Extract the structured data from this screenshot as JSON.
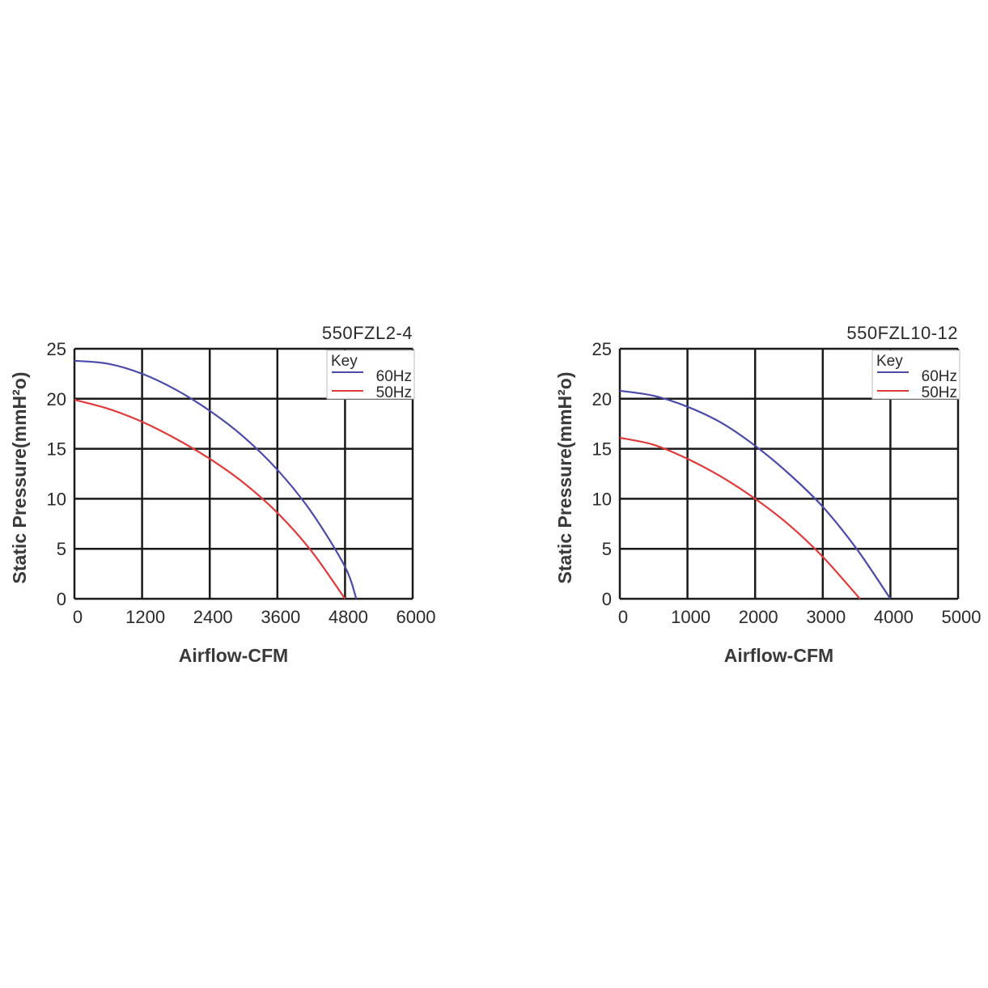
{
  "chart_data": [
    {
      "type": "line",
      "title": "550FZL2-4",
      "xlabel": "Airflow-CFM",
      "ylabel": "Static Pressure(mmH²o)",
      "xlim": [
        0,
        6000
      ],
      "ylim": [
        0,
        25
      ],
      "x_ticks": [
        "0",
        "1200",
        "2400",
        "3600",
        "4800",
        "6000"
      ],
      "y_ticks": [
        "0",
        "5",
        "10",
        "15",
        "20",
        "25"
      ],
      "grid": true,
      "legend": {
        "title": "Key",
        "position": "top-right"
      },
      "series": [
        {
          "name": "60Hz",
          "color": "#4a4aa8",
          "points": [
            [
              0,
              23.8
            ],
            [
              600,
              23.5
            ],
            [
              1200,
              22.5
            ],
            [
              1800,
              20.9
            ],
            [
              2400,
              18.8
            ],
            [
              3000,
              16.2
            ],
            [
              3600,
              12.9
            ],
            [
              4200,
              8.7
            ],
            [
              4800,
              3.2
            ],
            [
              5000,
              0
            ]
          ]
        },
        {
          "name": "50Hz",
          "color": "#e03a3a",
          "points": [
            [
              0,
              19.9
            ],
            [
              600,
              19.0
            ],
            [
              1200,
              17.7
            ],
            [
              1800,
              16.0
            ],
            [
              2400,
              14.0
            ],
            [
              3000,
              11.6
            ],
            [
              3600,
              8.6
            ],
            [
              4200,
              4.8
            ],
            [
              4800,
              0
            ]
          ]
        }
      ]
    },
    {
      "type": "line",
      "title": "550FZL10-12",
      "xlabel": "Airflow-CFM",
      "ylabel": "Static Pressure(mmH²o)",
      "xlim": [
        0,
        5000
      ],
      "ylim": [
        0,
        25
      ],
      "x_ticks": [
        "0",
        "1000",
        "2000",
        "3000",
        "4000",
        "5000"
      ],
      "y_ticks": [
        "0",
        "5",
        "10",
        "15",
        "20",
        "25"
      ],
      "grid": true,
      "legend": {
        "title": "Key",
        "position": "top-right"
      },
      "series": [
        {
          "name": "60Hz",
          "color": "#4a4aa8",
          "points": [
            [
              0,
              20.8
            ],
            [
              500,
              20.3
            ],
            [
              1000,
              19.2
            ],
            [
              1500,
              17.6
            ],
            [
              2000,
              15.3
            ],
            [
              2500,
              12.5
            ],
            [
              3000,
              9.2
            ],
            [
              3500,
              5.0
            ],
            [
              4000,
              0
            ]
          ]
        },
        {
          "name": "50Hz",
          "color": "#e03a3a",
          "points": [
            [
              0,
              16.1
            ],
            [
              500,
              15.4
            ],
            [
              1000,
              14.0
            ],
            [
              1500,
              12.2
            ],
            [
              2000,
              10.0
            ],
            [
              2500,
              7.4
            ],
            [
              3000,
              4.2
            ],
            [
              3550,
              0
            ]
          ]
        }
      ]
    }
  ]
}
